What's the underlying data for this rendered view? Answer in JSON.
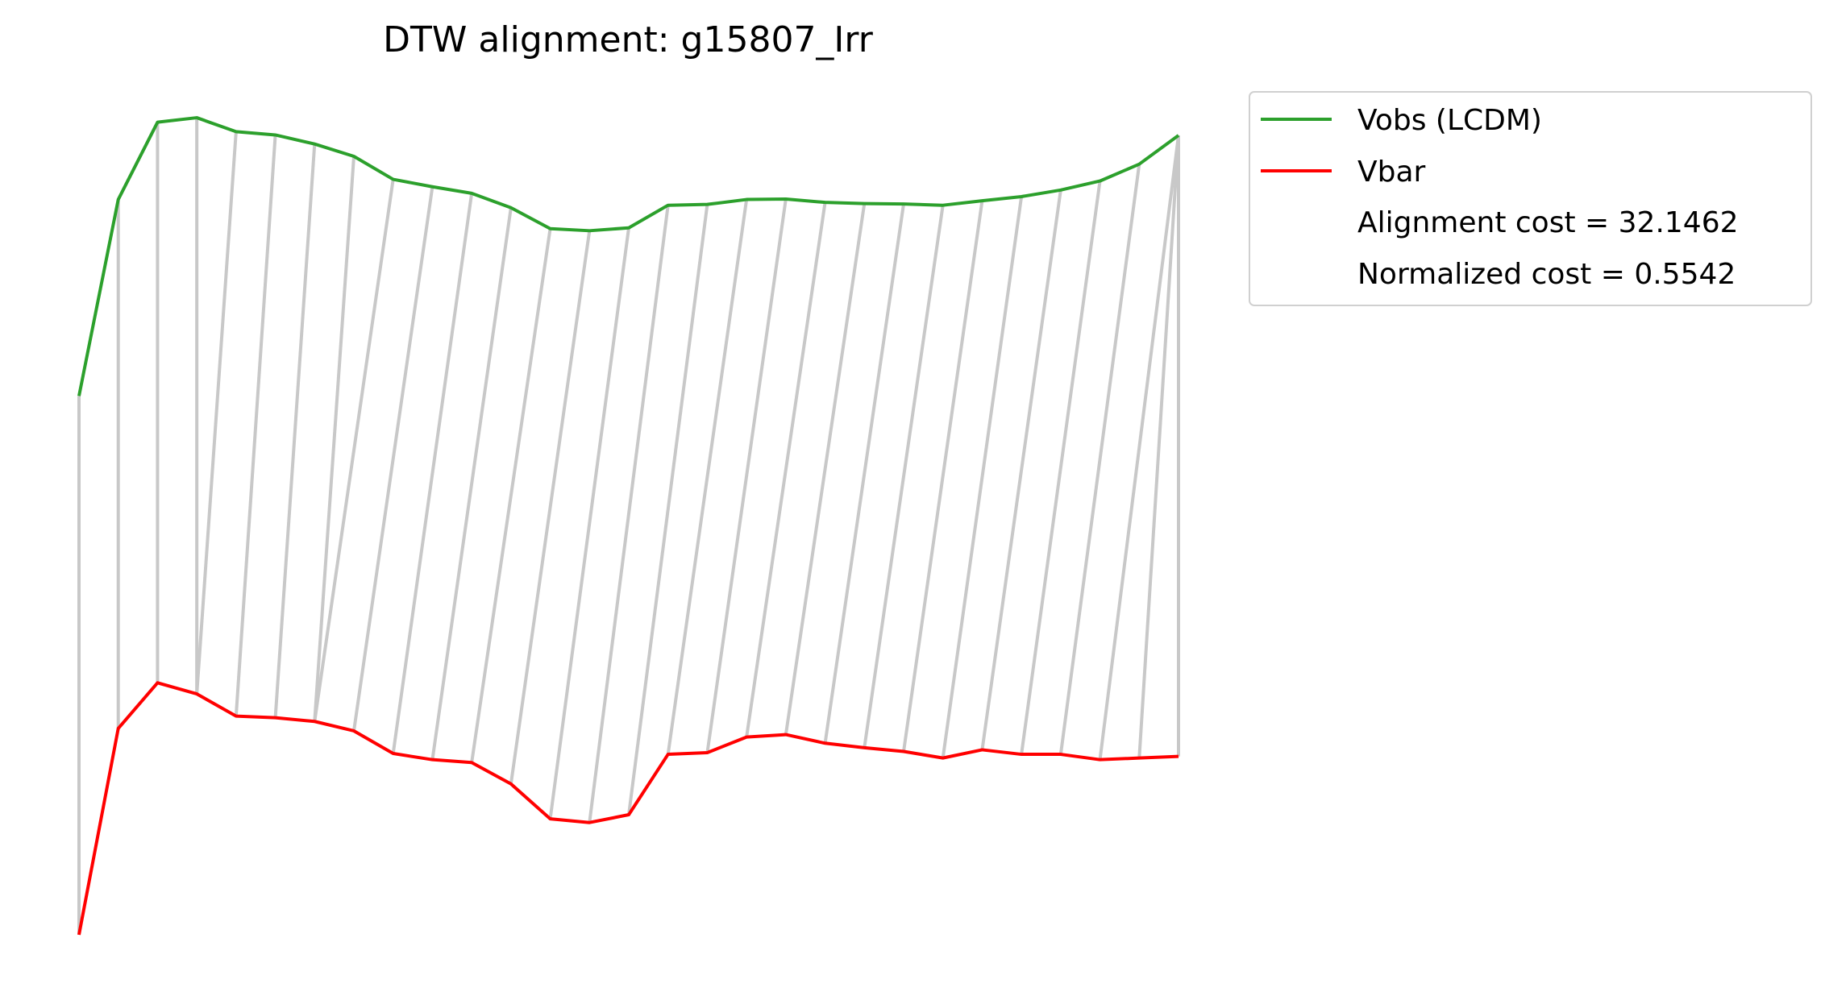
{
  "chart_data": {
    "type": "line",
    "title": "DTW alignment: g15807_Irr",
    "xlabel": "",
    "ylabel": "",
    "axes_visible": false,
    "grid": false,
    "legend_position": "outside-top-right",
    "series": [
      {
        "name": "Vobs (LCDM)",
        "color": "#2ca02c",
        "values": [
          17.67,
          22.45,
          24.33,
          24.44,
          24.1,
          24.02,
          23.8,
          23.5,
          22.94,
          22.76,
          22.6,
          22.25,
          21.74,
          21.69,
          21.76,
          22.31,
          22.33,
          22.45,
          22.46,
          22.38,
          22.35,
          22.34,
          22.31,
          22.42,
          22.52,
          22.68,
          22.9,
          23.31,
          24.01
        ]
      },
      {
        "name": "Vbar",
        "color": "#ff0000",
        "values": [
          4.56,
          9.58,
          10.69,
          10.42,
          9.88,
          9.84,
          9.75,
          9.52,
          8.97,
          8.82,
          8.75,
          8.23,
          7.38,
          7.29,
          7.48,
          8.95,
          8.99,
          9.37,
          9.43,
          9.22,
          9.11,
          9.02,
          8.86,
          9.06,
          8.95,
          8.95,
          8.82,
          8.86,
          8.9
        ]
      }
    ],
    "alignment_path": [
      [
        0,
        0
      ],
      [
        1,
        1
      ],
      [
        2,
        2
      ],
      [
        3,
        3
      ],
      [
        3,
        4
      ],
      [
        4,
        5
      ],
      [
        5,
        6
      ],
      [
        6,
        7
      ],
      [
        6,
        8
      ],
      [
        7,
        9
      ],
      [
        8,
        10
      ],
      [
        9,
        11
      ],
      [
        10,
        12
      ],
      [
        11,
        13
      ],
      [
        12,
        14
      ],
      [
        13,
        15
      ],
      [
        14,
        16
      ],
      [
        15,
        17
      ],
      [
        16,
        18
      ],
      [
        17,
        19
      ],
      [
        18,
        20
      ],
      [
        19,
        21
      ],
      [
        20,
        22
      ],
      [
        21,
        23
      ],
      [
        22,
        24
      ],
      [
        23,
        25
      ],
      [
        24,
        26
      ],
      [
        25,
        27
      ],
      [
        26,
        28
      ],
      [
        27,
        28
      ],
      [
        28,
        28
      ]
    ],
    "legend_extra": [
      "Alignment cost = 32.1462",
      "Normalized cost = 0.5542"
    ],
    "link_color": "#c8c8c8"
  }
}
